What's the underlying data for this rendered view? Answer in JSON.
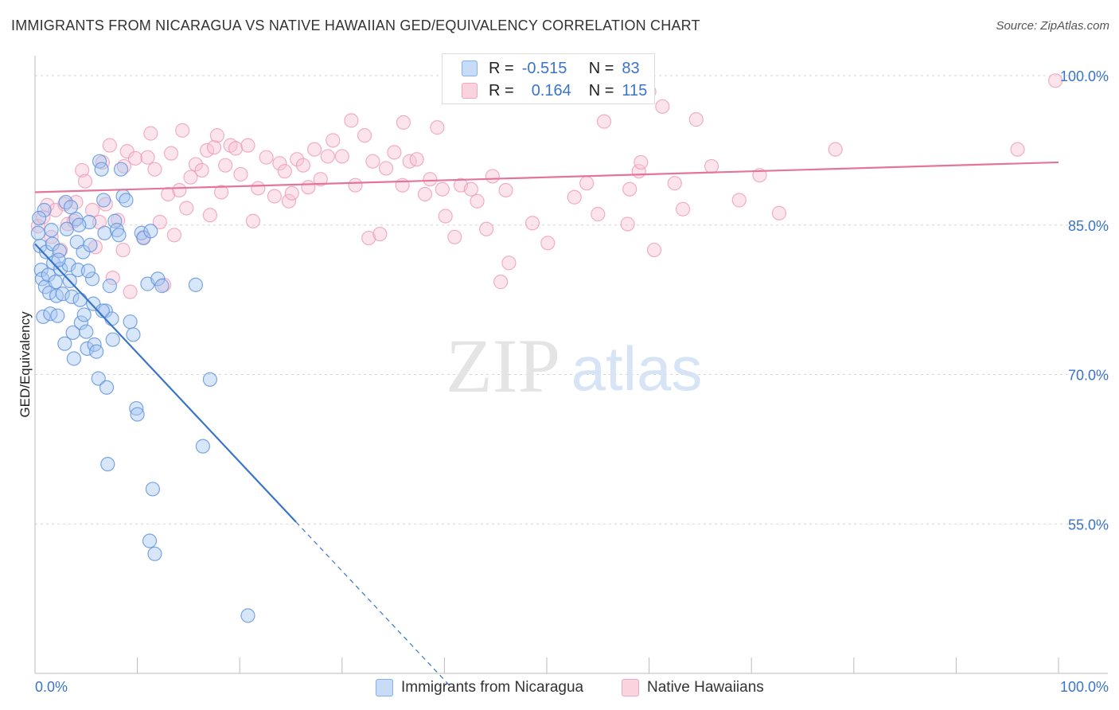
{
  "header": {
    "title": "IMMIGRANTS FROM NICARAGUA VS NATIVE HAWAIIAN GED/EQUIVALENCY CORRELATION CHART",
    "source": "Source: ZipAtlas.com"
  },
  "watermark": {
    "zip": "ZIP",
    "atlas": "atlas"
  },
  "legend_top": {
    "rows": [
      {
        "r_label": "R =",
        "r_value": "-0.515",
        "n_label": "N =",
        "n_value": "83",
        "color": "#7fb0f0"
      },
      {
        "r_label": "R =",
        "r_value": "0.164",
        "n_label": "N =",
        "n_value": "115",
        "color": "#f4a6bf"
      }
    ]
  },
  "legend_bottom": [
    {
      "label": "Immigrants from Nicaragua",
      "color": "#7fb0f0"
    },
    {
      "label": "Native Hawaiians",
      "color": "#f4a6bf"
    }
  ],
  "chart_data": {
    "type": "scatter",
    "title": "IMMIGRANTS FROM NICARAGUA VS NATIVE HAWAIIAN GED/EQUIVALENCY CORRELATION CHART",
    "xlabel": "",
    "ylabel": "GED/Equivalency",
    "xlim": [
      0,
      100
    ],
    "ylim": [
      40,
      102
    ],
    "x_tick_labels": [
      "0.0%",
      "100.0%"
    ],
    "y_ticks": [
      55,
      70,
      85,
      100
    ],
    "y_tick_labels": [
      "55.0%",
      "70.0%",
      "85.0%",
      "100.0%"
    ],
    "grid": true,
    "legend_position": "top-center",
    "colors": {
      "blue": "#3a74c9",
      "pink": "#e3759a",
      "blue_fill": "#a9c8f2",
      "pink_fill": "#f8c3d4"
    },
    "series": [
      {
        "name": "Immigrants from Nicaragua",
        "color": "#7fb0f0",
        "trend": {
          "x0": 0,
          "y0": 83.1,
          "x1": 25.5,
          "y1": 55.2,
          "dash_to_x": 40.5
        },
        "points": [
          [
            0.3,
            84.2
          ],
          [
            0.5,
            82.9
          ],
          [
            0.6,
            80.5
          ],
          [
            0.7,
            79.6
          ],
          [
            0.8,
            75.8
          ],
          [
            1.0,
            78.8
          ],
          [
            1.1,
            82.3
          ],
          [
            1.3,
            80.0
          ],
          [
            1.4,
            78.2
          ],
          [
            1.5,
            76.1
          ],
          [
            1.7,
            83.1
          ],
          [
            1.8,
            81.2
          ],
          [
            2.0,
            79.3
          ],
          [
            2.1,
            77.9
          ],
          [
            2.2,
            75.9
          ],
          [
            2.4,
            82.4
          ],
          [
            2.5,
            80.6
          ],
          [
            2.7,
            78.1
          ],
          [
            2.9,
            73.1
          ],
          [
            3.0,
            87.3
          ],
          [
            3.1,
            84.6
          ],
          [
            3.3,
            81.0
          ],
          [
            3.4,
            79.4
          ],
          [
            3.6,
            77.8
          ],
          [
            3.7,
            74.2
          ],
          [
            3.8,
            71.6
          ],
          [
            4.0,
            85.6
          ],
          [
            4.1,
            83.3
          ],
          [
            4.2,
            80.5
          ],
          [
            4.4,
            77.5
          ],
          [
            4.5,
            75.2
          ],
          [
            4.7,
            82.3
          ],
          [
            4.8,
            76.0
          ],
          [
            5.0,
            74.3
          ],
          [
            5.1,
            72.6
          ],
          [
            5.3,
            85.3
          ],
          [
            5.4,
            83.0
          ],
          [
            5.6,
            79.6
          ],
          [
            5.7,
            77.1
          ],
          [
            5.8,
            73.0
          ],
          [
            6.0,
            72.3
          ],
          [
            6.2,
            69.6
          ],
          [
            6.3,
            91.4
          ],
          [
            6.5,
            90.6
          ],
          [
            6.7,
            87.5
          ],
          [
            6.8,
            84.2
          ],
          [
            6.9,
            76.4
          ],
          [
            7.0,
            68.7
          ],
          [
            7.1,
            61.0
          ],
          [
            7.3,
            78.9
          ],
          [
            7.5,
            75.6
          ],
          [
            7.6,
            73.5
          ],
          [
            7.8,
            85.4
          ],
          [
            8.0,
            84.5
          ],
          [
            8.2,
            84.0
          ],
          [
            8.4,
            90.6
          ],
          [
            8.6,
            87.9
          ],
          [
            8.9,
            87.5
          ],
          [
            9.3,
            75.3
          ],
          [
            9.6,
            74.0
          ],
          [
            9.9,
            66.6
          ],
          [
            10.0,
            66.0
          ],
          [
            10.4,
            84.2
          ],
          [
            10.6,
            83.7
          ],
          [
            11.0,
            79.1
          ],
          [
            11.3,
            84.4
          ],
          [
            11.5,
            58.5
          ],
          [
            11.7,
            52.0
          ],
          [
            11.2,
            53.3
          ],
          [
            12.0,
            79.6
          ],
          [
            12.4,
            78.9
          ],
          [
            15.7,
            79.0
          ],
          [
            16.4,
            62.8
          ],
          [
            17.1,
            69.5
          ],
          [
            20.8,
            45.8
          ],
          [
            0.9,
            86.5
          ],
          [
            1.6,
            84.5
          ],
          [
            2.3,
            81.5
          ],
          [
            3.5,
            86.8
          ],
          [
            4.3,
            85.0
          ],
          [
            5.2,
            80.4
          ],
          [
            6.6,
            76.4
          ],
          [
            0.4,
            85.7
          ]
        ]
      },
      {
        "name": "Native Hawaiians",
        "color": "#f4a6bf",
        "trend": {
          "x0": 0,
          "y0": 88.3,
          "x1": 100,
          "y1": 91.3
        },
        "points": [
          [
            0.3,
            84.9
          ],
          [
            0.8,
            85.8
          ],
          [
            1.2,
            87.0
          ],
          [
            1.6,
            83.8
          ],
          [
            2.0,
            86.5
          ],
          [
            2.5,
            82.5
          ],
          [
            2.9,
            87.1
          ],
          [
            3.2,
            85.1
          ],
          [
            3.8,
            85.4
          ],
          [
            4.0,
            87.3
          ],
          [
            4.6,
            90.5
          ],
          [
            4.9,
            89.4
          ],
          [
            5.6,
            86.5
          ],
          [
            5.9,
            82.8
          ],
          [
            6.3,
            85.3
          ],
          [
            6.6,
            91.3
          ],
          [
            6.9,
            87.1
          ],
          [
            7.3,
            93.0
          ],
          [
            7.6,
            79.7
          ],
          [
            8.1,
            85.5
          ],
          [
            8.6,
            82.5
          ],
          [
            8.7,
            90.9
          ],
          [
            9.0,
            92.4
          ],
          [
            9.3,
            78.3
          ],
          [
            9.8,
            91.7
          ],
          [
            10.6,
            83.8
          ],
          [
            11.0,
            91.8
          ],
          [
            11.3,
            94.2
          ],
          [
            11.7,
            90.6
          ],
          [
            12.2,
            85.3
          ],
          [
            12.6,
            79.0
          ],
          [
            13.0,
            88.1
          ],
          [
            13.3,
            92.2
          ],
          [
            13.6,
            84.0
          ],
          [
            14.1,
            88.5
          ],
          [
            14.4,
            94.5
          ],
          [
            14.8,
            86.7
          ],
          [
            15.2,
            89.8
          ],
          [
            15.7,
            91.1
          ],
          [
            16.3,
            90.5
          ],
          [
            16.8,
            92.5
          ],
          [
            17.1,
            86.0
          ],
          [
            17.5,
            92.8
          ],
          [
            17.8,
            94.0
          ],
          [
            18.2,
            88.3
          ],
          [
            18.6,
            91.0
          ],
          [
            19.1,
            93.0
          ],
          [
            19.6,
            92.7
          ],
          [
            20.1,
            90.1
          ],
          [
            20.8,
            93.0
          ],
          [
            21.3,
            85.4
          ],
          [
            21.8,
            88.7
          ],
          [
            22.6,
            91.8
          ],
          [
            23.4,
            87.9
          ],
          [
            23.9,
            91.2
          ],
          [
            24.4,
            90.4
          ],
          [
            24.8,
            87.4
          ],
          [
            25.1,
            88.2
          ],
          [
            25.6,
            91.6
          ],
          [
            26.2,
            91.0
          ],
          [
            26.7,
            88.8
          ],
          [
            27.3,
            92.6
          ],
          [
            27.9,
            89.6
          ],
          [
            28.6,
            91.9
          ],
          [
            29.1,
            93.5
          ],
          [
            30.0,
            91.9
          ],
          [
            30.9,
            95.5
          ],
          [
            31.3,
            89.0
          ],
          [
            32.2,
            94.0
          ],
          [
            32.6,
            83.7
          ],
          [
            33.0,
            91.4
          ],
          [
            33.7,
            84.1
          ],
          [
            34.3,
            90.7
          ],
          [
            35.1,
            92.3
          ],
          [
            35.9,
            89.0
          ],
          [
            36.6,
            91.4
          ],
          [
            37.3,
            91.6
          ],
          [
            38.1,
            88.1
          ],
          [
            38.6,
            89.6
          ],
          [
            39.3,
            94.8
          ],
          [
            39.8,
            88.6
          ],
          [
            40.1,
            85.9
          ],
          [
            41.0,
            83.8
          ],
          [
            41.6,
            89.0
          ],
          [
            42.6,
            88.6
          ],
          [
            43.2,
            87.4
          ],
          [
            44.1,
            84.6
          ],
          [
            44.7,
            89.9
          ],
          [
            45.5,
            79.3
          ],
          [
            46.3,
            81.2
          ],
          [
            48.6,
            85.2
          ],
          [
            50.1,
            83.2
          ],
          [
            53.9,
            89.2
          ],
          [
            55.0,
            86.1
          ],
          [
            55.6,
            95.4
          ],
          [
            57.9,
            85.1
          ],
          [
            59.0,
            90.4
          ],
          [
            59.2,
            91.3
          ],
          [
            60.5,
            82.5
          ],
          [
            61.3,
            96.9
          ],
          [
            63.3,
            86.6
          ],
          [
            66.1,
            90.9
          ],
          [
            68.8,
            87.5
          ],
          [
            70.8,
            90.0
          ],
          [
            72.7,
            86.2
          ],
          [
            78.2,
            92.6
          ],
          [
            96.0,
            92.6
          ],
          [
            99.7,
            99.5
          ],
          [
            60.0,
            98.4
          ],
          [
            64.6,
            95.6
          ],
          [
            36.0,
            95.3
          ],
          [
            46.0,
            88.5
          ],
          [
            52.7,
            87.8
          ],
          [
            58.1,
            88.6
          ],
          [
            62.5,
            89.2
          ]
        ]
      }
    ]
  }
}
